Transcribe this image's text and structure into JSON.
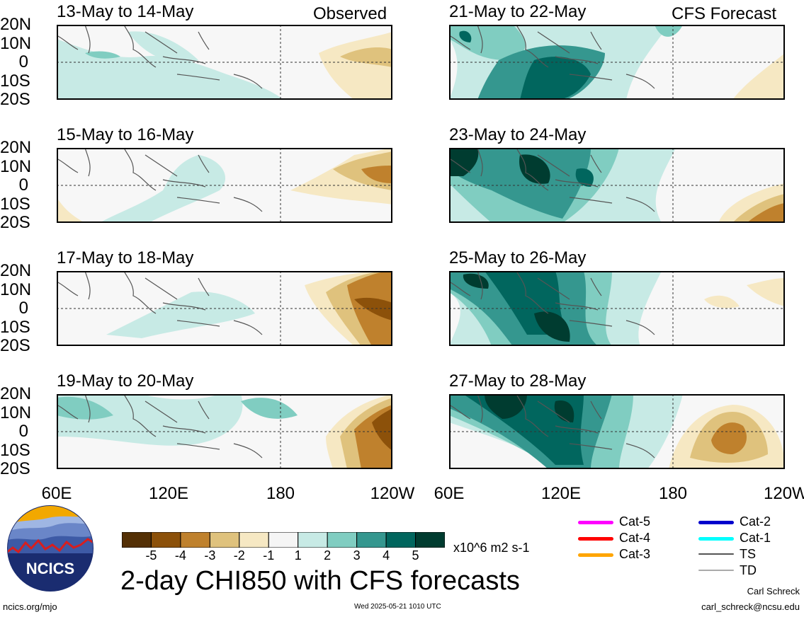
{
  "headers": {
    "left_tag": "Observed",
    "right_tag": "CFS Forecast"
  },
  "panels_left": [
    {
      "title": "13-May to 14-May"
    },
    {
      "title": "15-May to 16-May"
    },
    {
      "title": "17-May to 18-May"
    },
    {
      "title": "19-May to 20-May"
    }
  ],
  "panels_right": [
    {
      "title": "21-May to 22-May"
    },
    {
      "title": "23-May to 24-May"
    },
    {
      "title": "25-May to 26-May"
    },
    {
      "title": "27-May to 28-May"
    }
  ],
  "lat_labels": [
    "20N",
    "10N",
    "0",
    "10S",
    "20S"
  ],
  "lon_labels": [
    "60E",
    "120E",
    "180",
    "120W"
  ],
  "colorbar": {
    "tick_labels": [
      "-5",
      "-4",
      "-3",
      "-2",
      "-1",
      "1",
      "2",
      "3",
      "4",
      "5"
    ],
    "units": "x10^6 m2 s-1",
    "colors": [
      "#543005",
      "#8c510a",
      "#bf812d",
      "#dfc27d",
      "#f6e8c3",
      "#f5f5f5",
      "#c7eae5",
      "#80cdc1",
      "#35978f",
      "#01665e",
      "#003c30"
    ]
  },
  "legend": [
    {
      "label": "Cat-5",
      "color": "#ff00ff"
    },
    {
      "label": "Cat-4",
      "color": "#ff0000"
    },
    {
      "label": "Cat-3",
      "color": "#ffa500"
    },
    {
      "label": "Cat-2",
      "color": "#0000cc"
    },
    {
      "label": "Cat-1",
      "color": "#00ffff"
    },
    {
      "label": "TS",
      "color": "#555555"
    },
    {
      "label": "TD",
      "color": "#aaaaaa"
    }
  ],
  "logo_text": "NCICS",
  "main_title": "2-day CHI850 with CFS forecasts",
  "footer": {
    "url": "ncics.org/mjo",
    "timestamp": "Wed 2025-05-21 1010 UTC",
    "author": "Carl Schreck",
    "email": "carl_schreck@ncsu.edu"
  }
}
